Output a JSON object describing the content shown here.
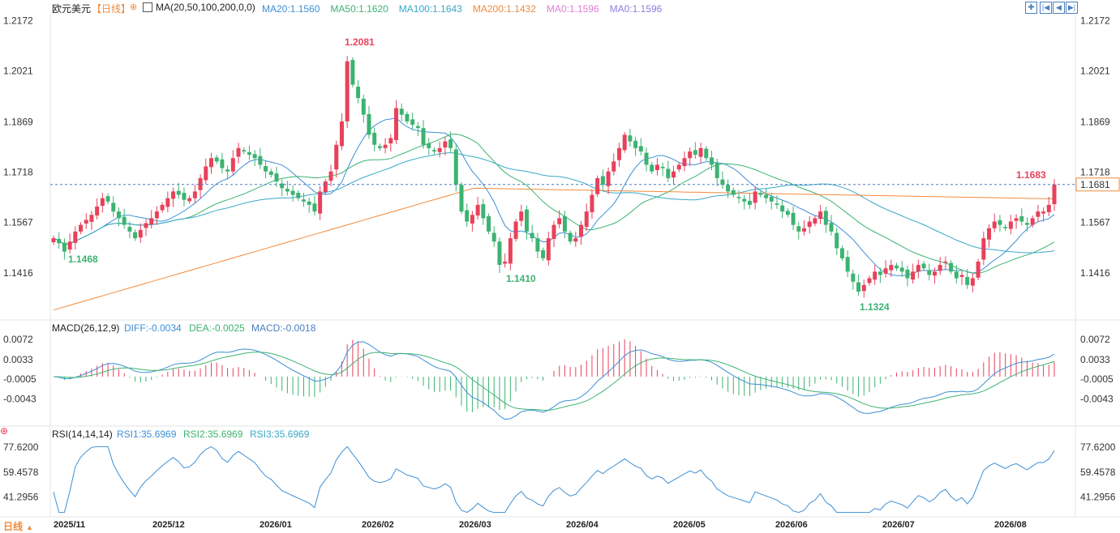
{
  "header": {
    "symbol": "欧元美元",
    "period": "【日线】",
    "ma_label": "MA(20,50,100,200,0,0)",
    "ma_items": [
      {
        "text": "MA20:1.1560",
        "color": "#3d8fd6"
      },
      {
        "text": "MA50:1.1620",
        "color": "#3cb371"
      },
      {
        "text": "MA100:1.1643",
        "color": "#39a8c8"
      },
      {
        "text": "MA200:1.1432",
        "color": "#f08a3c"
      },
      {
        "text": "MA0:1.1596",
        "color": "#e07fd6"
      },
      {
        "text": "MA0:1.1596",
        "color": "#8a7fe0"
      }
    ]
  },
  "toolbar": [
    "fit-icon",
    "first-icon",
    "prev-icon",
    "last-icon"
  ],
  "price_axis": {
    "ticks": [
      "1.2172",
      "1.2021",
      "1.1869",
      "1.1718",
      "1.1567",
      "1.1416"
    ],
    "current": "1.1681"
  },
  "annotations": {
    "high": "1.2081",
    "low1": "1.1468",
    "low2": "1.1410",
    "low3": "1.1324",
    "last_high": "1.1683"
  },
  "macd": {
    "label": "MACD(26,12,9)",
    "diff": "DIFF:-0.0034",
    "dea": "DEA:-0.0025",
    "macd": "MACD:-0.0018",
    "ticks": [
      "0.0072",
      "0.0033",
      "-0.0005",
      "-0.0043"
    ]
  },
  "rsi": {
    "label": "RSI(14,14,14)",
    "rsi1": "RSI1:35.6969",
    "rsi2": "RSI2:35.6969",
    "rsi3": "RSI3:35.6969",
    "ticks": [
      "77.6200",
      "59.4578",
      "41.2956"
    ]
  },
  "footer": {
    "period_button": "日线",
    "dates": [
      "2025/11",
      "2025/12",
      "2026/01",
      "2026/02",
      "2026/03",
      "2026/04",
      "2026/05",
      "2026/06",
      "2026/07",
      "2026/08"
    ]
  },
  "colors": {
    "up": "#e8415b",
    "down": "#3cb371",
    "ma20": "#3d8fd6",
    "ma50": "#3cb371",
    "ma100": "#39a8c8",
    "ma200": "#f08a3c"
  },
  "chart_data": {
    "type": "candlestick",
    "ylim": [
      1.128,
      1.219
    ],
    "closes": [
      1.152,
      1.1505,
      1.148,
      1.151,
      1.154,
      1.156,
      1.1575,
      1.159,
      1.1615,
      1.164,
      1.163,
      1.16,
      1.158,
      1.156,
      1.154,
      1.152,
      1.1545,
      1.1565,
      1.158,
      1.16,
      1.162,
      1.164,
      1.166,
      1.165,
      1.1635,
      1.164,
      1.166,
      1.17,
      1.1735,
      1.176,
      1.175,
      1.173,
      1.172,
      1.176,
      1.179,
      1.178,
      1.177,
      1.176,
      1.174,
      1.172,
      1.171,
      1.169,
      1.167,
      1.166,
      1.165,
      1.164,
      1.163,
      1.162,
      1.16,
      1.166,
      1.169,
      1.172,
      1.18,
      1.187,
      1.205,
      1.198,
      1.194,
      1.189,
      1.183,
      1.18,
      1.179,
      1.18,
      1.182,
      1.191,
      1.189,
      1.187,
      1.186,
      1.185,
      1.18,
      1.179,
      1.178,
      1.179,
      1.181,
      1.179,
      1.168,
      1.16,
      1.157,
      1.159,
      1.162,
      1.158,
      1.154,
      1.151,
      1.144,
      1.145,
      1.152,
      1.157,
      1.16,
      1.154,
      1.152,
      1.148,
      1.146,
      1.152,
      1.156,
      1.158,
      1.154,
      1.151,
      1.152,
      1.156,
      1.16,
      1.165,
      1.17,
      1.168,
      1.172,
      1.175,
      1.179,
      1.183,
      1.181,
      1.179,
      1.178,
      1.174,
      1.172,
      1.174,
      1.173,
      1.17,
      1.172,
      1.174,
      1.176,
      1.178,
      1.177,
      1.179,
      1.176,
      1.174,
      1.17,
      1.168,
      1.166,
      1.165,
      1.164,
      1.163,
      1.162,
      1.166,
      1.165,
      1.164,
      1.163,
      1.162,
      1.16,
      1.159,
      1.156,
      1.154,
      1.155,
      1.157,
      1.158,
      1.16,
      1.156,
      1.154,
      1.149,
      1.146,
      1.142,
      1.139,
      1.136,
      1.138,
      1.14,
      1.142,
      1.141,
      1.143,
      1.144,
      1.143,
      1.142,
      1.14,
      1.142,
      1.144,
      1.143,
      1.141,
      1.142,
      1.144,
      1.145,
      1.142,
      1.14,
      1.141,
      1.138,
      1.14,
      1.145,
      1.152,
      1.155,
      1.157,
      1.156,
      1.155,
      1.157,
      1.158,
      1.157,
      1.156,
      1.158,
      1.16,
      1.16,
      1.162,
      1.1681
    ]
  }
}
